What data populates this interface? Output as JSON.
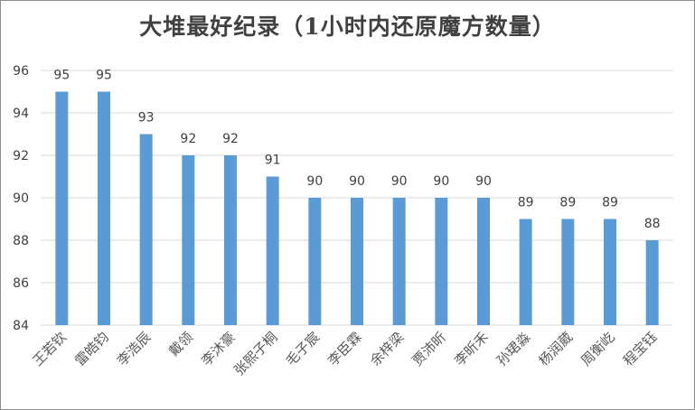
{
  "chart_data": {
    "type": "bar",
    "title": "大堆最好纪录（1小时内还原魔方数量）",
    "categories": [
      "王若钦",
      "雷皓钧",
      "李浩辰",
      "戴领",
      "李沐豪",
      "张熙子桐",
      "毛子宸",
      "李臣霖",
      "余梓梁",
      "贾沛昕",
      "李昕禾",
      "孙珺淼",
      "杨润葳",
      "周衡屹",
      "程宝钰"
    ],
    "values": [
      95,
      95,
      93,
      92,
      92,
      91,
      90,
      90,
      90,
      90,
      90,
      89,
      89,
      89,
      88
    ],
    "yticks": [
      84,
      86,
      88,
      90,
      92,
      94,
      96
    ],
    "ylim": [
      84,
      96
    ],
    "grid": true,
    "legend": false,
    "bar_color": "#5b9bd5",
    "grid_color": "#d9d9d9"
  }
}
